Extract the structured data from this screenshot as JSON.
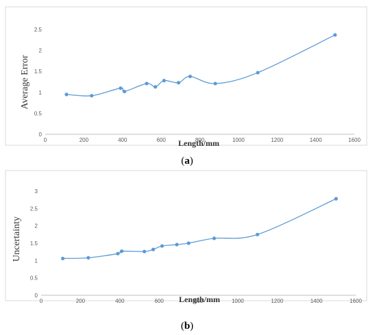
{
  "style": {
    "series_color": "#5B9BD5",
    "axis_color": "#bfbfbf",
    "frame_color": "#d9d9d9"
  },
  "chart_data": [
    {
      "type": "line",
      "panel_label": "a",
      "caption_open": "(",
      "caption_close": ")",
      "title": "",
      "xlabel": "Length/mm",
      "ylabel": "Average Error",
      "xlim": [
        0,
        1600
      ],
      "ylim": [
        0,
        2.5
      ],
      "x_ticks": [
        "0",
        "200",
        "400",
        "600",
        "800",
        "1000",
        "1200",
        "1400",
        "1600"
      ],
      "y_ticks": [
        "0",
        "0.5",
        "1",
        "1.5",
        "2",
        "2.5"
      ],
      "grid": false,
      "smooth": true,
      "series": [
        {
          "x": [
            110,
            240,
            390,
            410,
            525,
            570,
            615,
            690,
            750,
            880,
            1100,
            1500
          ],
          "y": [
            0.95,
            0.92,
            1.1,
            1.02,
            1.21,
            1.13,
            1.28,
            1.23,
            1.38,
            1.21,
            1.47,
            2.37
          ]
        }
      ]
    },
    {
      "type": "line",
      "panel_label": "b",
      "caption_open": "(",
      "caption_close": ")",
      "title": "",
      "xlabel": "Length/mm",
      "ylabel": "Uncertainty",
      "xlim": [
        0,
        1600
      ],
      "ylim": [
        0,
        3
      ],
      "x_ticks": [
        "0",
        "200",
        "400",
        "600",
        "800",
        "1000",
        "1200",
        "1400",
        "1600"
      ],
      "y_ticks": [
        "0",
        "0.5",
        "1",
        "1.5",
        "2",
        "2.5",
        "3"
      ],
      "grid": false,
      "smooth": true,
      "series": [
        {
          "x": [
            110,
            240,
            390,
            410,
            525,
            570,
            615,
            690,
            750,
            880,
            1100,
            1500
          ],
          "y": [
            1.06,
            1.08,
            1.2,
            1.27,
            1.26,
            1.32,
            1.42,
            1.46,
            1.5,
            1.64,
            1.75,
            2.78
          ]
        }
      ]
    }
  ]
}
